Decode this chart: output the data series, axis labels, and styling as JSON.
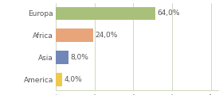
{
  "categories": [
    "Europa",
    "Africa",
    "Asia",
    "America"
  ],
  "values": [
    64.0,
    24.0,
    8.0,
    4.0
  ],
  "bar_colors": [
    "#a8c07a",
    "#e8a57a",
    "#7087b8",
    "#f0c84a"
  ],
  "labels": [
    "64,0%",
    "24,0%",
    "8,0%",
    "4,0%"
  ],
  "xlim": [
    0,
    105
  ],
  "background_color": "#ffffff",
  "bar_height": 0.6,
  "label_fontsize": 6.5,
  "tick_fontsize": 6.5,
  "grid_color": "#d0d8c0",
  "grid_positions": [
    0,
    25,
    50,
    75,
    100
  ]
}
